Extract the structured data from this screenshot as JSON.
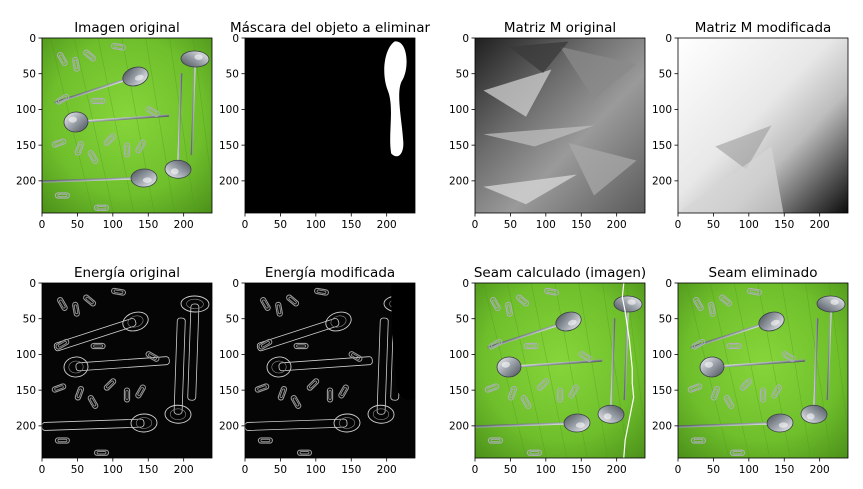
{
  "figure": {
    "background": "#ffffff",
    "colors": {
      "leaf_green": "#6fbf2c",
      "leaf_dark": "#4e9a1a",
      "spoon_silver": "#c9ccd2",
      "clip_silver": "#aab0b5",
      "seam_white": "#ffffff",
      "mask_black": "#000000"
    }
  },
  "chart_data": [
    {
      "type": "heatmap",
      "title": "Imagen original",
      "content": "photo",
      "xlim": [
        0,
        240
      ],
      "ylim": [
        245,
        0
      ],
      "xticks": [
        "0",
        "50",
        "100",
        "150",
        "200"
      ],
      "yticks": [
        "0",
        "50",
        "100",
        "150",
        "200"
      ],
      "show_seam": false
    },
    {
      "type": "heatmap",
      "title": "Máscara del objeto a eliminar",
      "content": "mask",
      "xlim": [
        0,
        240
      ],
      "ylim": [
        245,
        0
      ],
      "xticks": [
        "0",
        "50",
        "100",
        "150",
        "200"
      ],
      "yticks": [
        "0",
        "50",
        "100",
        "150",
        "200"
      ],
      "show_seam": false
    },
    {
      "type": "heatmap",
      "title": "Matriz M original",
      "content": "m_original",
      "colormap": "gray",
      "xlim": [
        0,
        240
      ],
      "ylim": [
        245,
        0
      ],
      "xticks": [
        "0",
        "50",
        "100",
        "150",
        "200"
      ],
      "yticks": [
        "0",
        "50",
        "100",
        "150",
        "200"
      ],
      "show_seam": false
    },
    {
      "type": "heatmap",
      "title": "Matriz M modificada",
      "content": "m_modified",
      "colormap": "gray",
      "xlim": [
        0,
        240
      ],
      "ylim": [
        245,
        0
      ],
      "xticks": [
        "0",
        "50",
        "100",
        "150",
        "200"
      ],
      "yticks": [
        "0",
        "50",
        "100",
        "150",
        "200"
      ],
      "show_seam": false
    },
    {
      "type": "heatmap",
      "title": "Energía original",
      "content": "energy",
      "colormap": "gray",
      "xlim": [
        0,
        240
      ],
      "ylim": [
        245,
        0
      ],
      "xticks": [
        "0",
        "50",
        "100",
        "150",
        "200"
      ],
      "yticks": [
        "0",
        "50",
        "100",
        "150",
        "200"
      ],
      "show_seam": false
    },
    {
      "type": "heatmap",
      "title": "Energía modificada",
      "content": "energy_masked",
      "colormap": "gray",
      "xlim": [
        0,
        240
      ],
      "ylim": [
        245,
        0
      ],
      "xticks": [
        "0",
        "50",
        "100",
        "150",
        "200"
      ],
      "yticks": [
        "0",
        "50",
        "100",
        "150",
        "200"
      ],
      "show_seam": false
    },
    {
      "type": "heatmap",
      "title": "Seam calculado (imagen)",
      "content": "photo",
      "xlim": [
        0,
        240
      ],
      "ylim": [
        245,
        0
      ],
      "xticks": [
        "0",
        "50",
        "100",
        "150",
        "200"
      ],
      "yticks": [
        "0",
        "50",
        "100",
        "150",
        "200"
      ],
      "show_seam": true,
      "seam": {
        "y": [
          0,
          20,
          40,
          60,
          80,
          100,
          120,
          140,
          160,
          180,
          200,
          220,
          245
        ],
        "x": [
          210,
          208,
          212,
          215,
          218,
          220,
          222,
          222,
          224,
          220,
          216,
          212,
          210
        ]
      }
    },
    {
      "type": "heatmap",
      "title": "Seam eliminado",
      "content": "photo",
      "xlim": [
        0,
        240
      ],
      "ylim": [
        245,
        0
      ],
      "xticks": [
        "0",
        "50",
        "100",
        "150",
        "200"
      ],
      "yticks": [
        "0",
        "50",
        "100",
        "150",
        "200"
      ],
      "show_seam": false
    }
  ]
}
